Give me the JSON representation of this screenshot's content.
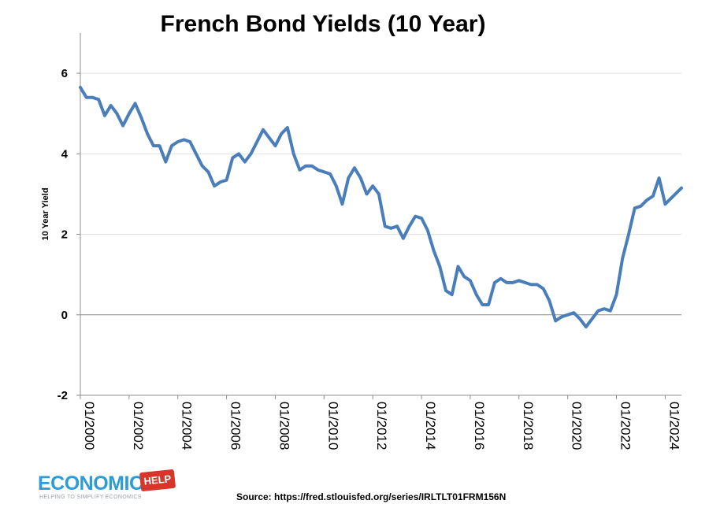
{
  "chart_data": {
    "type": "line",
    "title": "French Bond Yields (10 Year)",
    "xlabel": "",
    "ylabel": "10 Year Yield",
    "ylim": [
      -2,
      7
    ],
    "yticks": [
      -2,
      0,
      2,
      4,
      6
    ],
    "xlim": [
      "2000-01",
      "2024-09"
    ],
    "xticks": [
      "01/2000",
      "01/2002",
      "01/2004",
      "01/2006",
      "01/2008",
      "01/2010",
      "01/2012",
      "01/2014",
      "01/2016",
      "01/2018",
      "01/2020",
      "01/2022",
      "01/2024"
    ],
    "grid": "horizontal",
    "color": "#4a7ebb",
    "series": [
      {
        "x": [
          "2000-01",
          "2000-04",
          "2000-07",
          "2000-10",
          "2001-01",
          "2001-04",
          "2001-07",
          "2001-10",
          "2002-01",
          "2002-04",
          "2002-07",
          "2002-10",
          "2003-01",
          "2003-04",
          "2003-07",
          "2003-10",
          "2004-01",
          "2004-04",
          "2004-07",
          "2004-10",
          "2005-01",
          "2005-04",
          "2005-07",
          "2005-10",
          "2006-01",
          "2006-04",
          "2006-07",
          "2006-10",
          "2007-01",
          "2007-04",
          "2007-07",
          "2007-10",
          "2008-01",
          "2008-04",
          "2008-07",
          "2008-10",
          "2009-01",
          "2009-04",
          "2009-07",
          "2009-10",
          "2010-01",
          "2010-04",
          "2010-07",
          "2010-10",
          "2011-01",
          "2011-04",
          "2011-07",
          "2011-10",
          "2012-01",
          "2012-04",
          "2012-07",
          "2012-10",
          "2013-01",
          "2013-04",
          "2013-07",
          "2013-10",
          "2014-01",
          "2014-04",
          "2014-07",
          "2014-10",
          "2015-01",
          "2015-04",
          "2015-07",
          "2015-10",
          "2016-01",
          "2016-04",
          "2016-07",
          "2016-10",
          "2017-01",
          "2017-04",
          "2017-07",
          "2017-10",
          "2018-01",
          "2018-04",
          "2018-07",
          "2018-10",
          "2019-01",
          "2019-04",
          "2019-07",
          "2019-10",
          "2020-01",
          "2020-04",
          "2020-07",
          "2020-10",
          "2021-01",
          "2021-04",
          "2021-07",
          "2021-10",
          "2022-01",
          "2022-04",
          "2022-07",
          "2022-10",
          "2023-01",
          "2023-04",
          "2023-07",
          "2023-10",
          "2024-01",
          "2024-04",
          "2024-07",
          "2024-09"
        ],
        "y": [
          5.65,
          5.4,
          5.4,
          5.35,
          4.95,
          5.2,
          5.0,
          4.7,
          5.0,
          5.25,
          4.9,
          4.5,
          4.2,
          4.2,
          3.8,
          4.2,
          4.3,
          4.35,
          4.3,
          4.0,
          3.7,
          3.55,
          3.2,
          3.3,
          3.35,
          3.9,
          4.0,
          3.8,
          4.0,
          4.3,
          4.6,
          4.4,
          4.2,
          4.5,
          4.65,
          4.0,
          3.6,
          3.7,
          3.7,
          3.6,
          3.55,
          3.5,
          3.2,
          2.75,
          3.4,
          3.65,
          3.4,
          3.0,
          3.2,
          3.0,
          2.2,
          2.15,
          2.2,
          1.9,
          2.2,
          2.45,
          2.4,
          2.1,
          1.6,
          1.2,
          0.6,
          0.5,
          1.2,
          0.95,
          0.85,
          0.5,
          0.25,
          0.25,
          0.8,
          0.9,
          0.8,
          0.8,
          0.85,
          0.8,
          0.75,
          0.75,
          0.65,
          0.35,
          -0.15,
          -0.05,
          0.0,
          0.05,
          -0.1,
          -0.3,
          -0.1,
          0.1,
          0.15,
          0.1,
          0.5,
          1.4,
          2.0,
          2.65,
          2.7,
          2.85,
          2.95,
          3.4,
          2.75,
          2.9,
          3.05,
          3.15
        ]
      }
    ]
  },
  "source": "Source: https://fred.stlouisfed.org/series/IRLTLT01FRM156N",
  "logo": {
    "word": "ECONOMICS",
    "badge": "HELP",
    "tagline": "HELPING TO SIMPLIFY ECONOMICS"
  }
}
